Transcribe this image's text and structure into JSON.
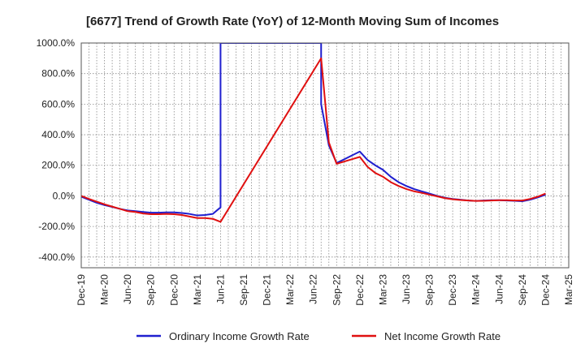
{
  "chart_data": {
    "type": "line",
    "title": "[6677]  Trend of Growth Rate (YoY) of 12-Month Moving Sum of Incomes",
    "xlabel": "",
    "ylabel": "",
    "ylim": [
      -470,
      1000
    ],
    "yticks": [
      1000,
      800,
      600,
      400,
      200,
      0,
      -200,
      -400
    ],
    "ytick_labels": [
      "1000.0%",
      "800.0%",
      "600.0%",
      "400.0%",
      "200.0%",
      "0.0%",
      "-200.0%",
      "-400.0%"
    ],
    "x_start": "Dec-19",
    "x_end": "Mar-25",
    "xtick_labels": [
      "Dec-19",
      "Mar-20",
      "Jun-20",
      "Sep-20",
      "Dec-20",
      "Mar-21",
      "Jun-21",
      "Sep-21",
      "Dec-21",
      "Mar-22",
      "Jun-22",
      "Sep-22",
      "Dec-22",
      "Mar-23",
      "Jun-23",
      "Sep-23",
      "Dec-23",
      "Mar-24",
      "Jun-24",
      "Sep-24",
      "Dec-24",
      "Mar-25"
    ],
    "grid": true,
    "legend_position": "bottom",
    "series": [
      {
        "name": "Ordinary Income Growth Rate",
        "color": "#1f1fcf",
        "points": [
          [
            "Dec-19",
            -5
          ],
          [
            "Jan-20",
            -25
          ],
          [
            "Feb-20",
            -45
          ],
          [
            "Mar-20",
            -60
          ],
          [
            "Apr-20",
            -72
          ],
          [
            "May-20",
            -85
          ],
          [
            "Jun-20",
            -95
          ],
          [
            "Jul-20",
            -100
          ],
          [
            "Aug-20",
            -105
          ],
          [
            "Sep-20",
            -110
          ],
          [
            "Oct-20",
            -110
          ],
          [
            "Nov-20",
            -108
          ],
          [
            "Dec-20",
            -108
          ],
          [
            "Jan-21",
            -112
          ],
          [
            "Feb-21",
            -118
          ],
          [
            "Mar-21",
            -128
          ],
          [
            "Apr-21",
            -125
          ],
          [
            "May-21",
            -118
          ],
          [
            "Jun-21",
            -75
          ],
          [
            "Jun-21",
            1000
          ],
          [
            "Jul-22",
            1000
          ],
          [
            "Jul-22",
            600
          ],
          [
            "Aug-22",
            330
          ],
          [
            "Sep-22",
            215
          ],
          [
            "Oct-22",
            240
          ],
          [
            "Nov-22",
            265
          ],
          [
            "Dec-22",
            290
          ],
          [
            "Jan-23",
            235
          ],
          [
            "Feb-23",
            200
          ],
          [
            "Mar-23",
            170
          ],
          [
            "Apr-23",
            125
          ],
          [
            "May-23",
            90
          ],
          [
            "Jun-23",
            65
          ],
          [
            "Jul-23",
            45
          ],
          [
            "Aug-23",
            30
          ],
          [
            "Sep-23",
            15
          ],
          [
            "Oct-23",
            0
          ],
          [
            "Nov-23",
            -12
          ],
          [
            "Dec-23",
            -20
          ],
          [
            "Jan-24",
            -25
          ],
          [
            "Feb-24",
            -30
          ],
          [
            "Mar-24",
            -33
          ],
          [
            "Apr-24",
            -30
          ],
          [
            "May-24",
            -28
          ],
          [
            "Jun-24",
            -28
          ],
          [
            "Jul-24",
            -30
          ],
          [
            "Aug-24",
            -32
          ],
          [
            "Sep-24",
            -35
          ],
          [
            "Oct-24",
            -25
          ],
          [
            "Nov-24",
            -10
          ],
          [
            "Dec-24",
            8
          ]
        ]
      },
      {
        "name": "Net Income Growth Rate",
        "color": "#e01010",
        "points": [
          [
            "Dec-19",
            0
          ],
          [
            "Jan-20",
            -20
          ],
          [
            "Feb-20",
            -38
          ],
          [
            "Mar-20",
            -55
          ],
          [
            "Apr-20",
            -70
          ],
          [
            "May-20",
            -85
          ],
          [
            "Jun-20",
            -100
          ],
          [
            "Jul-20",
            -105
          ],
          [
            "Aug-20",
            -115
          ],
          [
            "Sep-20",
            -120
          ],
          [
            "Oct-20",
            -120
          ],
          [
            "Nov-20",
            -118
          ],
          [
            "Dec-20",
            -120
          ],
          [
            "Jan-21",
            -125
          ],
          [
            "Feb-21",
            -135
          ],
          [
            "Mar-21",
            -145
          ],
          [
            "Apr-21",
            -145
          ],
          [
            "May-21",
            -150
          ],
          [
            "Jun-21",
            -170
          ],
          [
            "Jul-22",
            900
          ],
          [
            "Aug-22",
            350
          ],
          [
            "Sep-22",
            210
          ],
          [
            "Oct-22",
            225
          ],
          [
            "Nov-22",
            240
          ],
          [
            "Dec-22",
            255
          ],
          [
            "Jan-23",
            190
          ],
          [
            "Feb-23",
            150
          ],
          [
            "Mar-23",
            125
          ],
          [
            "Apr-23",
            90
          ],
          [
            "May-23",
            65
          ],
          [
            "Jun-23",
            45
          ],
          [
            "Jul-23",
            30
          ],
          [
            "Aug-23",
            20
          ],
          [
            "Sep-23",
            8
          ],
          [
            "Oct-23",
            -3
          ],
          [
            "Nov-23",
            -15
          ],
          [
            "Dec-23",
            -22
          ],
          [
            "Jan-24",
            -27
          ],
          [
            "Feb-24",
            -30
          ],
          [
            "Mar-24",
            -33
          ],
          [
            "Apr-24",
            -32
          ],
          [
            "May-24",
            -30
          ],
          [
            "Jun-24",
            -28
          ],
          [
            "Jul-24",
            -28
          ],
          [
            "Aug-24",
            -30
          ],
          [
            "Sep-24",
            -30
          ],
          [
            "Oct-24",
            -20
          ],
          [
            "Nov-24",
            -5
          ],
          [
            "Dec-24",
            15
          ]
        ]
      }
    ]
  }
}
